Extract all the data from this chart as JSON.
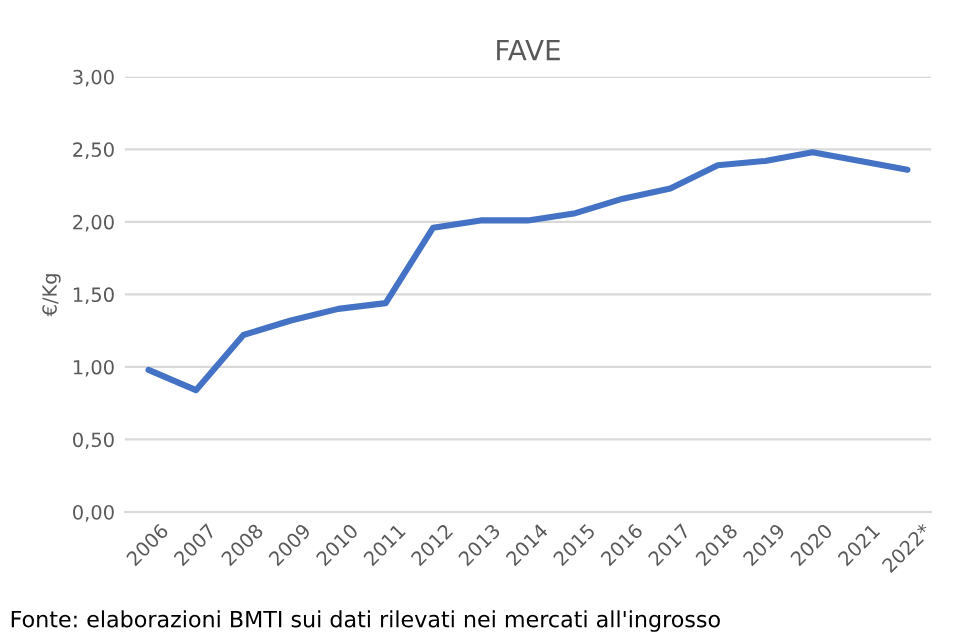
{
  "chart_data": {
    "type": "line",
    "title": "FAVE",
    "ylabel": "€/Kg",
    "categories": [
      "2006",
      "2007",
      "2008",
      "2009",
      "2010",
      "2011",
      "2012",
      "2013",
      "2014",
      "2015",
      "2016",
      "2017",
      "2018",
      "2019",
      "2020",
      "2021",
      "2022*"
    ],
    "series": [
      {
        "color": "#4472c4",
        "values": [
          0.98,
          0.84,
          1.22,
          1.32,
          1.4,
          1.44,
          1.96,
          2.01,
          2.01,
          2.06,
          2.16,
          2.23,
          2.39,
          2.42,
          2.48,
          2.42,
          2.36
        ]
      }
    ],
    "ylim": [
      0,
      3
    ],
    "yticks": [
      {
        "value": 0,
        "label": "0,00"
      },
      {
        "value": 0.5,
        "label": "0,50"
      },
      {
        "value": 1,
        "label": "1,00"
      },
      {
        "value": 1.5,
        "label": "1,50"
      },
      {
        "value": 2,
        "label": "2,00"
      },
      {
        "value": 2.5,
        "label": "2,50"
      },
      {
        "value": 3,
        "label": "3,00"
      }
    ],
    "grid": "y",
    "legend": false,
    "marker": "none",
    "line_style": "solid",
    "annotations": [
      "Fonte: elaborazioni BMTI sui dati rilevati nei mercati all'ingrosso"
    ]
  }
}
